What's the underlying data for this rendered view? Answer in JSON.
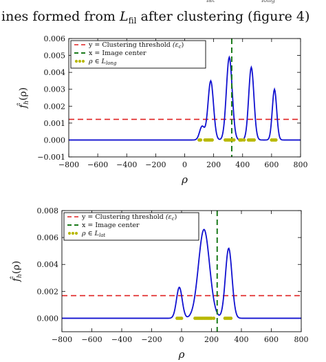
{
  "caption": {
    "text_left": "ines formed from ",
    "math_main": "L",
    "math_sub": "fil",
    "text_right": " after clustering (figure 4)",
    "top_partial_1": "lat",
    "top_partial_2": "long"
  },
  "chart_data": [
    {
      "type": "line",
      "xlabel": "ρ",
      "ylabel": "f̂h(ρ)",
      "ylabel_main": "f̂",
      "ylabel_sub": "h",
      "ylabel_arg": "(ρ)",
      "xlim": [
        -800,
        800
      ],
      "ylim": [
        -0.001,
        0.006
      ],
      "x_ticks": [
        -800,
        -600,
        -400,
        -200,
        0,
        200,
        400,
        600,
        800
      ],
      "x_tick_labels": [
        "−800",
        "−600",
        "−400",
        "−200",
        "0",
        "200",
        "400",
        "600",
        "800"
      ],
      "y_ticks": [
        -0.001,
        0.0,
        0.001,
        0.002,
        0.003,
        0.004,
        0.005,
        0.006
      ],
      "y_tick_labels": [
        "−0.001",
        "0.000",
        "0.001",
        "0.002",
        "0.003",
        "0.004",
        "0.005",
        "0.006"
      ],
      "threshold": 0.00122,
      "center": 325,
      "kde_peaks": [
        {
          "mu": 120,
          "sigma": 17,
          "amp": 0.0008
        },
        {
          "mu": 180,
          "sigma": 19,
          "amp": 0.0035
        },
        {
          "mu": 308,
          "sigma": 20,
          "amp": 0.0049
        },
        {
          "mu": 460,
          "sigma": 18,
          "amp": 0.0043
        },
        {
          "mu": 620,
          "sigma": 15,
          "amp": 0.003
        }
      ],
      "points": [
        100,
        110,
        140,
        150,
        160,
        170,
        180,
        190,
        280,
        290,
        300,
        310,
        320,
        330,
        340,
        380,
        385,
        395,
        410,
        440,
        450,
        460,
        470,
        480,
        600,
        610,
        620,
        630
      ],
      "legend": {
        "placement": "top-left",
        "items": [
          {
            "label": "y = Clustering threshold",
            "math": "(ε",
            "math_sub": "c",
            "math_end": ")"
          },
          {
            "label": "x = Image center"
          },
          {
            "label_prefix": "ρ ∈ ",
            "math": "L",
            "math_sub": "long"
          }
        ]
      }
    },
    {
      "type": "line",
      "xlabel": "ρ",
      "ylabel": "f̂h(ρ)",
      "ylabel_main": "f̂",
      "ylabel_sub": "h",
      "ylabel_arg": "(ρ)",
      "xlim": [
        -800,
        800
      ],
      "ylim": [
        -0.001,
        0.008
      ],
      "x_ticks": [
        -800,
        -600,
        -400,
        -200,
        0,
        200,
        400,
        600,
        800
      ],
      "x_tick_labels": [
        "−800",
        "−600",
        "−400",
        "−200",
        "0",
        "200",
        "400",
        "600",
        "800"
      ],
      "y_ticks": [
        0.0,
        0.002,
        0.004,
        0.006,
        0.008
      ],
      "y_tick_labels": [
        "0.000",
        "0.002",
        "0.004",
        "0.006",
        "0.008"
      ],
      "threshold": 0.00168,
      "center": 238,
      "kde_peaks": [
        {
          "mu": -15,
          "sigma": 19,
          "amp": 0.0023
        },
        {
          "mu": 150,
          "sigma": 37,
          "amp": 0.0066
        },
        {
          "mu": 315,
          "sigma": 22,
          "amp": 0.0052
        }
      ],
      "points": [
        -30,
        -20,
        -10,
        0,
        90,
        100,
        110,
        120,
        130,
        140,
        150,
        160,
        170,
        180,
        190,
        200,
        215,
        290,
        300,
        310,
        320,
        330
      ],
      "legend": {
        "placement": "top-left",
        "items": [
          {
            "label": "y = Clustering threshold",
            "math": "(ε",
            "math_sub": "c",
            "math_end": ")"
          },
          {
            "label": "x = Image center"
          },
          {
            "label_prefix": "ρ ∈ ",
            "math": "L",
            "math_sub": "lat"
          }
        ]
      }
    }
  ],
  "colors": {
    "kde": "#1010d0",
    "threshold": "#e02020",
    "center": "#1a7a1a",
    "points": "#b8b800",
    "axis": "#000000",
    "legend_border": "#000000"
  }
}
